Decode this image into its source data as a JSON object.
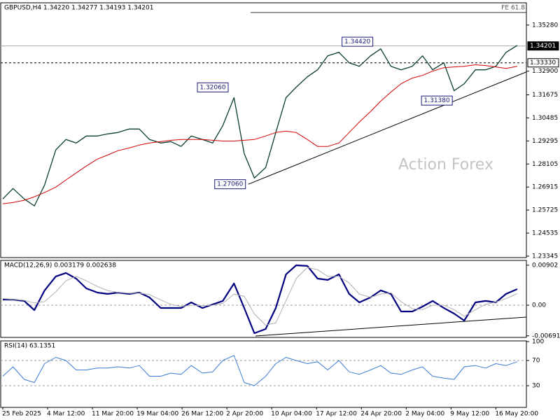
{
  "chart_data": [
    {
      "type": "line",
      "title": "GBPUSD,H4 1.34220 1.34277 1.34193 1.34201",
      "watermark": "Action Forex",
      "x": [
        0,
        10,
        21,
        31,
        41,
        52,
        62,
        72,
        82,
        93,
        103,
        113,
        124,
        134,
        144,
        155,
        165,
        175,
        185,
        196,
        206,
        216,
        227,
        237,
        247,
        258,
        268,
        278,
        288,
        299,
        309,
        319,
        330,
        340,
        350,
        361,
        371,
        381,
        391,
        402,
        412,
        422,
        433,
        443,
        453,
        464,
        474,
        484,
        494,
        505
      ],
      "xlim": [
        0,
        514
      ],
      "ylim": [
        1.2327,
        1.3643
      ],
      "yticks": [
        {
          "value": 1.3528,
          "label": "1.35280"
        },
        {
          "value": 1.329,
          "label": "1.32900"
        },
        {
          "value": 1.31675,
          "label": "1.31675"
        },
        {
          "value": 1.30485,
          "label": "1.30485"
        },
        {
          "value": 1.29295,
          "label": "1.29295"
        },
        {
          "value": 1.28105,
          "label": "1.28105"
        },
        {
          "value": 1.26915,
          "label": "1.26915"
        },
        {
          "value": 1.25725,
          "label": "1.25725"
        },
        {
          "value": 1.24535,
          "label": "1.24535"
        },
        {
          "value": 1.23345,
          "label": "1.23345"
        }
      ],
      "series": [
        {
          "color": "#0b3d2e",
          "width": 1.3,
          "values": [
            1.263,
            1.2684,
            1.263,
            1.2594,
            1.2702,
            1.2883,
            1.2937,
            1.2919,
            1.2955,
            1.2955,
            1.2966,
            1.2973,
            1.2991,
            1.2991,
            1.2937,
            1.2919,
            1.2926,
            1.2901,
            1.2955,
            1.2937,
            1.2919,
            1.3009,
            1.3153,
            1.2864,
            1.2738,
            1.2792,
            1.2973,
            1.3153,
            1.3207,
            1.3261,
            1.3297,
            1.3369,
            1.3387,
            1.3333,
            1.3315,
            1.3369,
            1.3405,
            1.3315,
            1.3297,
            1.3315,
            1.3369,
            1.3297,
            1.3333,
            1.3189,
            1.3225,
            1.3297,
            1.3297,
            1.3315,
            1.3387,
            1.3423
          ]
        },
        {
          "color": "#d00000",
          "width": 1,
          "values": [
            1.2605,
            1.2612,
            1.2623,
            1.2641,
            1.2663,
            1.2691,
            1.2728,
            1.2764,
            1.28,
            1.2836,
            1.2857,
            1.2879,
            1.2893,
            1.2908,
            1.2919,
            1.2926,
            1.2933,
            1.2937,
            1.2937,
            1.2937,
            1.2933,
            1.2929,
            1.2929,
            1.2933,
            1.2937,
            1.2955,
            1.2973,
            1.298,
            1.2973,
            1.2937,
            1.2901,
            1.2901,
            1.2919,
            1.2973,
            1.3027,
            1.3081,
            1.3135,
            1.3182,
            1.3225,
            1.3254,
            1.3268,
            1.329,
            1.3308,
            1.3312,
            1.3315,
            1.3323,
            1.3319,
            1.3312,
            1.3304,
            1.3315
          ]
        }
      ],
      "levels": [
        {
          "value": 1.34201,
          "label": "1.34201",
          "style": "solid",
          "box": "dark"
        },
        {
          "value": 1.3333,
          "label": "1.33330",
          "style": "dashed",
          "box": "light"
        },
        {
          "value": 1.3593,
          "label": "FE 61.8",
          "style": "fe"
        }
      ],
      "annotations": [
        {
          "label": "1.34420",
          "x": 366,
          "value": 1.3442
        },
        {
          "label": "1.32060",
          "x": 224,
          "value": 1.3206
        },
        {
          "label": "1.27060",
          "x": 241,
          "value": 1.2706
        },
        {
          "label": "1.31380",
          "x": 444,
          "value": 1.3138
        }
      ],
      "trendlines": [
        {
          "x": [
            241,
            514
          ],
          "y": [
            1.2706,
            1.3286
          ]
        }
      ]
    },
    {
      "type": "line",
      "title": "MACD(12,26,9) 0.003179 0.002638",
      "x": [
        0,
        10,
        21,
        31,
        41,
        52,
        62,
        72,
        82,
        93,
        103,
        113,
        124,
        134,
        144,
        155,
        165,
        175,
        185,
        196,
        206,
        216,
        227,
        237,
        247,
        258,
        268,
        278,
        288,
        299,
        309,
        319,
        330,
        340,
        350,
        361,
        371,
        381,
        391,
        402,
        412,
        422,
        433,
        443,
        453,
        464,
        474,
        484,
        494,
        505
      ],
      "xlim": [
        0,
        514
      ],
      "ylim": [
        -0.00727,
        0.0101
      ],
      "yticks": [
        0.00902,
        {
          "value": 0,
          "label": "0.00"
        },
        -0.006915
      ],
      "series": [
        {
          "color": "#000080",
          "width": 2.2,
          "values": [
            0.00126,
            0.00126,
            0.00095,
            -0.00111,
            0.00332,
            0.00648,
            0.00727,
            0.006,
            0.00379,
            0.00284,
            0.00253,
            0.00284,
            0.00253,
            0.00284,
            0.00174,
            -0.00063,
            -0.00063,
            -0.00063,
            0.00063,
            -0.00063,
            0.00016,
            0.00095,
            0.0049,
            -0.00063,
            -0.00632,
            -0.00537,
            -0.00063,
            0.00695,
            0.009,
            0.00885,
            0.006,
            0.00569,
            0.00695,
            0.00253,
            0.00063,
            0.00174,
            0.00332,
            0.00253,
            -0.00142,
            -0.00142,
            -0.00032,
            0.00095,
            -0.00063,
            -0.0019,
            -0.00348,
            0.00063,
            0.00095,
            0.00063,
            0.00253,
            0.00363
          ]
        },
        {
          "color": "#b0b0b0",
          "width": 1,
          "values": [
            0.0015,
            0.0013,
            0.0011,
            0.0005,
            0.0008,
            0.003,
            0.0055,
            0.0065,
            0.0055,
            0.0042,
            0.0033,
            0.0029,
            0.0027,
            0.0027,
            0.0024,
            0.0012,
            0.0002,
            -0.0003,
            0.0,
            -0.0001,
            0.0,
            0.0004,
            0.0025,
            0.002,
            -0.002,
            -0.0045,
            -0.004,
            0.001,
            0.006,
            0.0085,
            0.008,
            0.0065,
            0.0065,
            0.005,
            0.0025,
            0.0018,
            0.0025,
            0.0028,
            0.0008,
            -0.0008,
            -0.001,
            0.0,
            0.0,
            -0.001,
            -0.0025,
            -0.001,
            0.0002,
            0.0007,
            0.0015,
            0.0026
          ]
        }
      ],
      "levels": [
        {
          "value": 0,
          "style": "dashed"
        }
      ],
      "trendlines": [
        {
          "x": [
            248,
            514
          ],
          "y": [
            -0.00696,
            -0.00269
          ]
        }
      ]
    },
    {
      "type": "line",
      "title": "RSI(14) 63.1351",
      "x": [
        0,
        10,
        21,
        31,
        41,
        52,
        62,
        72,
        82,
        93,
        103,
        113,
        124,
        134,
        144,
        155,
        165,
        175,
        185,
        196,
        206,
        216,
        227,
        237,
        247,
        258,
        268,
        278,
        288,
        299,
        309,
        319,
        330,
        340,
        350,
        361,
        371,
        381,
        391,
        402,
        412,
        422,
        433,
        443,
        453,
        464,
        474,
        484,
        494,
        505
      ],
      "xlim": [
        0,
        514
      ],
      "ylim": [
        -4.4,
        101.1
      ],
      "yticks": [
        100,
        70,
        30
      ],
      "series": [
        {
          "color": "#3a7bd5",
          "width": 1,
          "values": [
            45,
            60,
            40,
            35,
            65,
            75,
            70,
            55,
            55,
            58,
            58,
            60,
            58,
            62,
            45,
            45,
            50,
            48,
            62,
            50,
            52,
            70,
            78,
            35,
            30,
            45,
            65,
            75,
            70,
            65,
            68,
            55,
            70,
            52,
            48,
            55,
            62,
            50,
            48,
            55,
            60,
            45,
            42,
            40,
            60,
            62,
            58,
            65,
            62,
            68
          ]
        }
      ],
      "levels": [
        {
          "value": 70,
          "style": "dashed"
        },
        {
          "value": 30,
          "style": "dashed"
        }
      ],
      "xticks": [
        {
          "value": 0,
          "label": "25 Feb 2025"
        },
        {
          "value": 44,
          "label": "4 Mar 12:00"
        },
        {
          "value": 88,
          "label": "11 Mar 20:00"
        },
        {
          "value": 132,
          "label": "19 Mar 04:00"
        },
        {
          "value": 176,
          "label": "26 Mar 12:00"
        },
        {
          "value": 220,
          "label": "2 Apr 20:00"
        },
        {
          "value": 264,
          "label": "10 Apr 04:00"
        },
        {
          "value": 308,
          "label": "17 Apr 12:00"
        },
        {
          "value": 352,
          "label": "24 Apr 20:00"
        },
        {
          "value": 396,
          "label": "2 May 04:00"
        },
        {
          "value": 440,
          "label": "9 May 12:00"
        },
        {
          "value": 484,
          "label": "16 May 20:00"
        }
      ]
    }
  ]
}
